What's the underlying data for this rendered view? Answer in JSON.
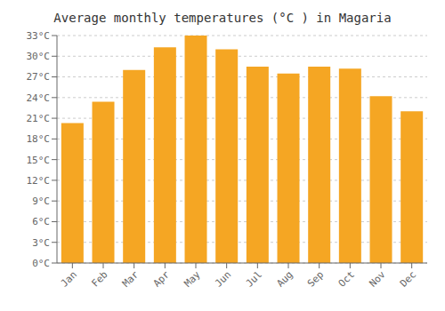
{
  "chart_data": {
    "type": "bar",
    "title": "Average monthly temperatures (°C ) in Magaria",
    "categories": [
      "Jan",
      "Feb",
      "Mar",
      "Apr",
      "May",
      "Jun",
      "Jul",
      "Aug",
      "Sep",
      "Oct",
      "Nov",
      "Dec"
    ],
    "values": [
      20.3,
      23.4,
      28.0,
      31.3,
      33.0,
      31.0,
      28.5,
      27.5,
      28.5,
      28.2,
      24.2,
      22.0
    ],
    "color": "#F5A623",
    "ylim": [
      0,
      33
    ],
    "yticks": [
      {
        "value": 0,
        "label": "0°C"
      },
      {
        "value": 3,
        "label": "3°C"
      },
      {
        "value": 6,
        "label": "6°C"
      },
      {
        "value": 9,
        "label": "9°C"
      },
      {
        "value": 12,
        "label": "12°C"
      },
      {
        "value": 15,
        "label": "15°C"
      },
      {
        "value": 18,
        "label": "18°C"
      },
      {
        "value": 21,
        "label": "21°C"
      },
      {
        "value": 24,
        "label": "24°C"
      },
      {
        "value": 27,
        "label": "27°C"
      },
      {
        "value": 30,
        "label": "30°C"
      },
      {
        "value": 33,
        "label": "33°C"
      }
    ],
    "grid": true
  }
}
